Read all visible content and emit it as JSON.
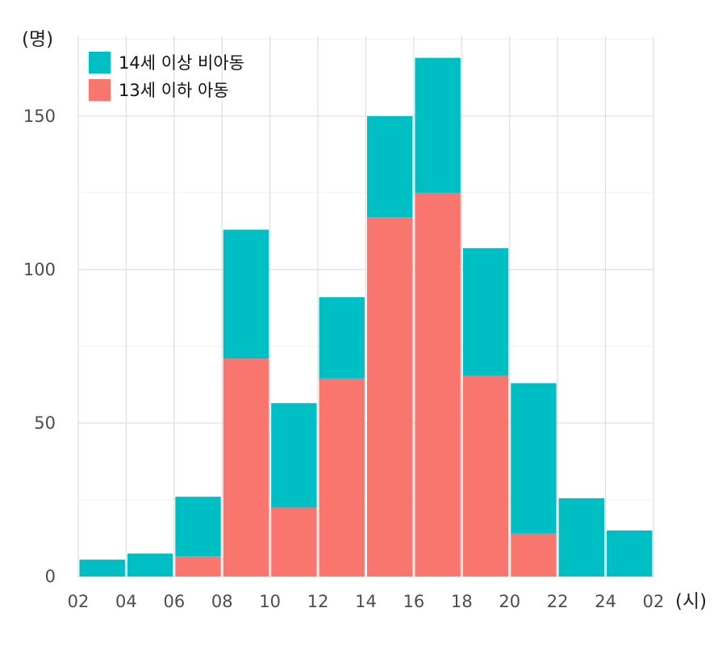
{
  "chart_data": {
    "type": "bar",
    "stacked": true,
    "y_unit": "(명)",
    "x_unit": "(시)",
    "x_ticks": [
      "02",
      "04",
      "06",
      "08",
      "10",
      "12",
      "14",
      "16",
      "18",
      "20",
      "22",
      "24",
      "02"
    ],
    "y_ticks": [
      0,
      50,
      100,
      150
    ],
    "ylim": [
      0,
      176
    ],
    "grid": true,
    "legend_position": "top-left",
    "series": [
      {
        "name": "13세 이하 아동",
        "color": "#F8766D",
        "values": [
          0,
          0,
          6.5,
          71,
          22.5,
          64.5,
          117,
          125,
          65.5,
          14,
          0,
          0
        ]
      },
      {
        "name": "14세 이상 비아동",
        "color": "#00BFC4",
        "values": [
          5.5,
          7.5,
          19.5,
          42,
          34,
          26.5,
          33,
          44,
          41.5,
          49,
          25.5,
          15
        ]
      }
    ]
  }
}
